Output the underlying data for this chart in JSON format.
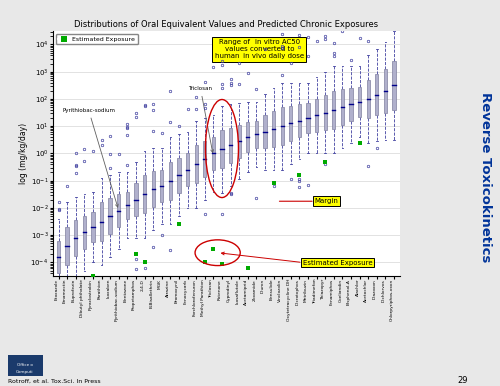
{
  "title": "Distributions of Oral Equivalent Values and Predicted Chronic Exposures",
  "ylabel": "log (mg/kg/day)",
  "right_label": "Reverse Toxicokinetics",
  "background_color": "#e8e8e8",
  "plot_bg": "#ffffff",
  "categories": [
    "Etoxazole",
    "Emamectin",
    "Buprofezin",
    "Dibutyl phthalate",
    "Pyraclostrobin",
    "Parathion",
    "Isoxaben",
    "Pyrithiobac-sodium",
    "Bentazone",
    "Propetamphos",
    "2,4-D",
    "B-Bisallethrin",
    "MGK",
    "Atrazine",
    "Bromoxynil",
    "Fenoxycarb",
    "Forchlorofenuron",
    "Methyl Parathion",
    "Triclosan",
    "Rotenone",
    "Cyprodinyl",
    "Isosaflutole",
    "Acetamiprid",
    "Zoxamide",
    "Diuron",
    "Bensulide",
    "Vinclozolin",
    "Oxytetracycline DH",
    "Dicrotophos",
    "Metribuzin",
    "Triadimefon",
    "Thiazopyr",
    "Fenamiphos",
    "Coeliandin",
    "Bisphenol-A",
    "Alachlor",
    "Acetochlor",
    "Diazoxon",
    "Dichlorvos",
    "Chlorpyriphos-oxon"
  ],
  "box_facecolor": "#b0b0cc",
  "box_edgecolor": "#8080a0",
  "median_color": "#00008b",
  "whisker_color": "#4040a0",
  "outlier_color": "#4040a0",
  "exposure_color": "#00aa00",
  "annotation_yellow_bg": "#ffff00",
  "red_color": "#cc0000",
  "arrow_color": "#606060",
  "footer_text": "Rotroff, et al. Tox.Sci. In Press",
  "page_num": "29",
  "logo_color": "#1a3a6b",
  "right_label_color": "#003399",
  "seed": 42,
  "medians_log": [
    -3.8,
    -3.4,
    -3.1,
    -2.9,
    -2.7,
    -2.5,
    -2.3,
    -2.1,
    -1.9,
    -1.7,
    -1.5,
    -1.3,
    -1.2,
    -1.0,
    -0.8,
    -0.6,
    -0.4,
    -0.2,
    0.0,
    0.15,
    0.3,
    0.45,
    0.6,
    0.7,
    0.8,
    0.9,
    1.0,
    1.1,
    1.2,
    1.3,
    1.4,
    1.5,
    1.6,
    1.7,
    1.8,
    1.9,
    2.0,
    2.15,
    2.3,
    2.5
  ],
  "iqr_half": [
    0.6,
    0.7,
    0.65,
    0.6,
    0.55,
    0.7,
    0.65,
    0.6,
    0.5,
    0.6,
    0.7,
    0.65,
    0.6,
    0.7,
    0.65,
    0.6,
    0.7,
    0.65,
    0.6,
    0.7,
    0.65,
    0.6,
    0.55,
    0.5,
    0.6,
    0.65,
    0.7,
    0.65,
    0.6,
    0.55,
    0.6,
    0.65,
    0.7,
    0.65,
    0.6,
    0.55,
    0.7,
    0.75,
    0.8,
    0.9
  ],
  "whisker_ext": [
    0.8,
    0.9,
    0.85,
    0.8,
    0.75,
    0.9,
    0.85,
    0.8,
    0.7,
    0.8,
    0.9,
    0.85,
    0.8,
    0.9,
    0.85,
    0.8,
    0.9,
    0.85,
    0.8,
    0.9,
    0.85,
    0.8,
    0.75,
    0.7,
    0.8,
    0.85,
    0.9,
    0.85,
    0.8,
    0.75,
    0.8,
    0.85,
    0.9,
    0.85,
    0.8,
    0.75,
    0.9,
    0.95,
    1.0,
    1.1
  ],
  "exposure_indices": [
    0,
    1,
    2,
    3,
    4,
    5,
    7,
    9,
    10,
    14,
    17,
    18,
    19,
    22,
    25,
    28,
    31,
    35
  ],
  "exposure_offsets": [
    -2.5,
    -2.8,
    -2.2,
    -2.0,
    -1.8,
    -3.0,
    -2.5,
    -2.0,
    -2.5,
    -1.8,
    -3.8,
    -3.5,
    -4.2,
    -4.8,
    -2.0,
    -2.0,
    -1.8,
    -1.5
  ]
}
